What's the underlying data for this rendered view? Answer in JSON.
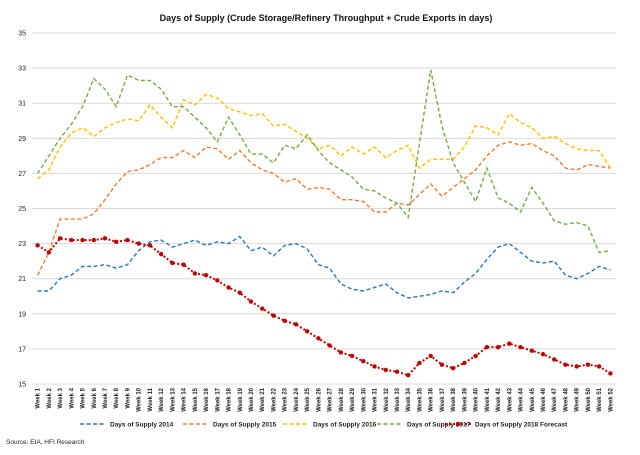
{
  "chart_data": {
    "type": "line",
    "title": "Days of Supply (Crude Storage/Refinery Throughput + Crude Exports in days)",
    "xlabel": "",
    "ylabel": "",
    "ylim": [
      15,
      35
    ],
    "yticks": [
      15,
      17,
      19,
      21,
      23,
      25,
      27,
      29,
      31,
      33,
      35
    ],
    "grid": true,
    "legend_position": "bottom",
    "categories": [
      "Week 1",
      "Week 2",
      "Week 3",
      "Week 4",
      "Week 5",
      "Week 6",
      "Week 7",
      "Week 8",
      "Week 9",
      "Week 10",
      "Week 11",
      "Week 12",
      "Week 13",
      "Week 14",
      "Week 15",
      "Week 16",
      "Week 17",
      "Week 18",
      "Week 19",
      "Week 20",
      "Week 21",
      "Week 22",
      "Week 23",
      "Week 24",
      "Week 25",
      "Week 26",
      "Week 27",
      "Week 28",
      "Week 29",
      "Week 30",
      "Week 31",
      "Week 32",
      "Week 33",
      "Week 34",
      "Week 35",
      "Week 36",
      "Week 37",
      "Week 38",
      "Week 39",
      "Week 40",
      "Week 41",
      "Week 42",
      "Week 43",
      "Week 44",
      "Week 45",
      "Week 46",
      "Week 47",
      "Week 48",
      "Week 49",
      "Week 50",
      "Week 51",
      "Week 52"
    ],
    "series": [
      {
        "name": "Days of Supply 2014",
        "color": "#2e75b6",
        "style": "dashed",
        "values": [
          20.3,
          20.3,
          21.0,
          21.2,
          21.7,
          21.7,
          21.8,
          21.6,
          21.8,
          22.6,
          23.1,
          23.2,
          22.8,
          23.0,
          23.2,
          22.9,
          23.1,
          23.0,
          23.4,
          22.6,
          22.8,
          22.3,
          22.9,
          23.0,
          22.7,
          21.8,
          21.6,
          20.7,
          20.4,
          20.3,
          20.5,
          20.7,
          20.2,
          19.9,
          20.0,
          20.1,
          20.3,
          20.2,
          20.8,
          21.3,
          22.1,
          22.8,
          23.0,
          22.5,
          22.0,
          21.9,
          22.0,
          21.2,
          21.0,
          21.3,
          21.7,
          21.5
        ]
      },
      {
        "name": "Days of Supply 2015",
        "color": "#ed7d31",
        "style": "dashed",
        "values": [
          21.2,
          22.5,
          24.4,
          24.4,
          24.4,
          24.7,
          25.5,
          26.4,
          27.1,
          27.2,
          27.5,
          27.9,
          27.9,
          28.3,
          27.9,
          28.5,
          28.4,
          27.8,
          28.3,
          27.6,
          27.2,
          27.0,
          26.5,
          26.7,
          26.1,
          26.2,
          26.1,
          25.5,
          25.5,
          25.4,
          24.8,
          24.8,
          25.3,
          25.2,
          25.8,
          26.4,
          25.7,
          26.2,
          26.7,
          27.2,
          28.0,
          28.6,
          28.8,
          28.6,
          28.7,
          28.3,
          28.0,
          27.3,
          27.2,
          27.5,
          27.4,
          27.3
        ]
      },
      {
        "name": "Days of Supply 2016",
        "color": "#ffc000",
        "style": "dashed",
        "values": [
          26.7,
          27.2,
          28.5,
          29.3,
          29.6,
          29.1,
          29.6,
          29.9,
          30.1,
          30.0,
          30.9,
          30.2,
          29.6,
          31.2,
          30.9,
          31.5,
          31.3,
          30.7,
          30.5,
          30.3,
          30.4,
          29.7,
          29.8,
          29.4,
          29.0,
          28.4,
          28.6,
          28.0,
          28.5,
          28.1,
          28.5,
          27.9,
          28.3,
          28.6,
          27.3,
          27.8,
          27.8,
          27.8,
          28.5,
          29.7,
          29.6,
          29.2,
          30.4,
          29.9,
          29.6,
          29.0,
          29.1,
          28.7,
          28.4,
          28.3,
          28.3,
          27.3
        ]
      },
      {
        "name": "Days of Supply 2017",
        "color": "#70ad47",
        "style": "dashed",
        "values": [
          27.0,
          28.0,
          29.0,
          29.8,
          30.8,
          32.4,
          31.8,
          30.8,
          32.6,
          32.3,
          32.3,
          31.8,
          30.8,
          30.8,
          30.2,
          29.6,
          28.8,
          30.2,
          29.2,
          28.1,
          28.1,
          27.6,
          28.6,
          28.4,
          29.2,
          28.3,
          27.6,
          27.2,
          26.8,
          26.1,
          26.0,
          25.6,
          25.3,
          24.5,
          28.7,
          32.9,
          29.7,
          27.6,
          26.5,
          25.4,
          27.3,
          25.6,
          25.3,
          24.8,
          26.2,
          25.3,
          24.3,
          24.1,
          24.2,
          24.0,
          22.5,
          22.6
        ]
      },
      {
        "name": "Days of Supply 2018 Forecast",
        "color": "#c00000",
        "style": "dotted-markers",
        "values": [
          22.9,
          22.5,
          23.3,
          23.2,
          23.2,
          23.2,
          23.3,
          23.1,
          23.2,
          23.0,
          22.9,
          22.4,
          21.9,
          21.8,
          21.3,
          21.2,
          20.9,
          20.5,
          20.2,
          19.7,
          19.3,
          18.9,
          18.6,
          18.4,
          18.0,
          17.6,
          17.2,
          16.8,
          16.6,
          16.3,
          16.0,
          15.8,
          15.7,
          15.5,
          16.2,
          16.6,
          16.1,
          15.9,
          16.2,
          16.6,
          17.1,
          17.1,
          17.3,
          17.1,
          16.9,
          16.7,
          16.4,
          16.1,
          16.0,
          16.1,
          16.0,
          15.6
        ]
      }
    ],
    "source": "Source: EIA, HFI Research"
  }
}
